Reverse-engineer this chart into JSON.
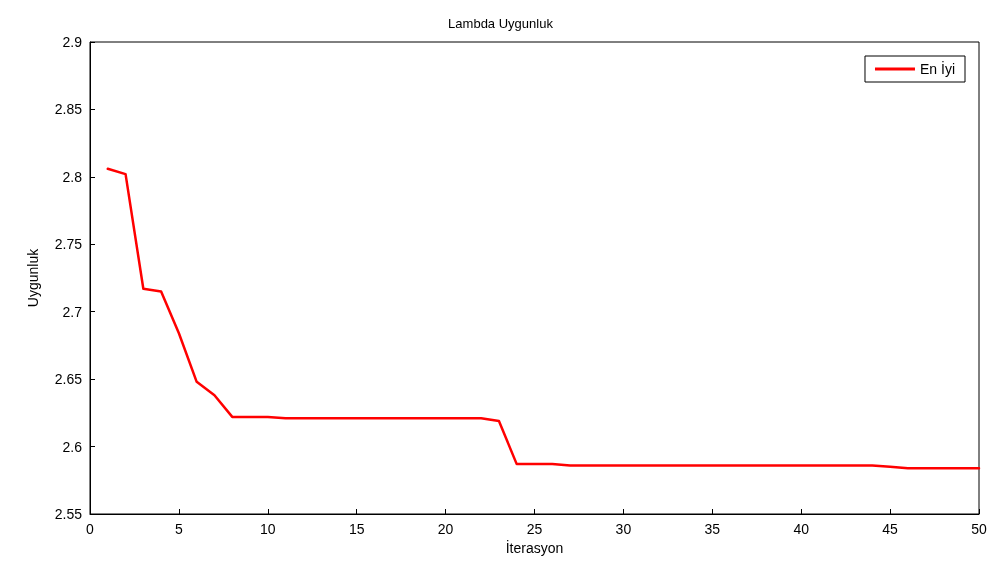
{
  "chart_data": {
    "type": "line",
    "title": "Lambda Uygunluk",
    "xlabel": "İterasyon",
    "ylabel": "Uygunluk",
    "x": [
      1,
      2,
      3,
      4,
      5,
      6,
      7,
      8,
      9,
      10,
      11,
      12,
      13,
      14,
      15,
      16,
      17,
      18,
      19,
      20,
      21,
      22,
      23,
      24,
      25,
      26,
      27,
      28,
      29,
      30,
      31,
      32,
      33,
      34,
      35,
      36,
      37,
      38,
      39,
      40,
      41,
      42,
      43,
      44,
      45,
      46,
      47,
      48,
      49,
      50
    ],
    "series": [
      {
        "name": "En İyi",
        "color": "#ff0000",
        "values": [
          2.806,
          2.802,
          2.717,
          2.715,
          2.684,
          2.648,
          2.638,
          2.622,
          2.622,
          2.622,
          2.621,
          2.621,
          2.621,
          2.621,
          2.621,
          2.621,
          2.621,
          2.621,
          2.621,
          2.621,
          2.621,
          2.621,
          2.619,
          2.587,
          2.587,
          2.587,
          2.586,
          2.586,
          2.586,
          2.586,
          2.586,
          2.586,
          2.586,
          2.586,
          2.586,
          2.586,
          2.586,
          2.586,
          2.586,
          2.586,
          2.586,
          2.586,
          2.586,
          2.586,
          2.585,
          2.584,
          2.584,
          2.584,
          2.584,
          2.584
        ]
      }
    ],
    "xlim": [
      0,
      50
    ],
    "xticks": [
      0,
      5,
      10,
      15,
      20,
      25,
      30,
      35,
      40,
      45,
      50
    ],
    "ylim": [
      2.55,
      2.9
    ],
    "yticks": [
      2.55,
      2.6,
      2.65,
      2.7,
      2.75,
      2.8,
      2.85,
      2.9
    ],
    "legend": "top right",
    "grid": false,
    "marker": "none",
    "line_style": "solid"
  }
}
